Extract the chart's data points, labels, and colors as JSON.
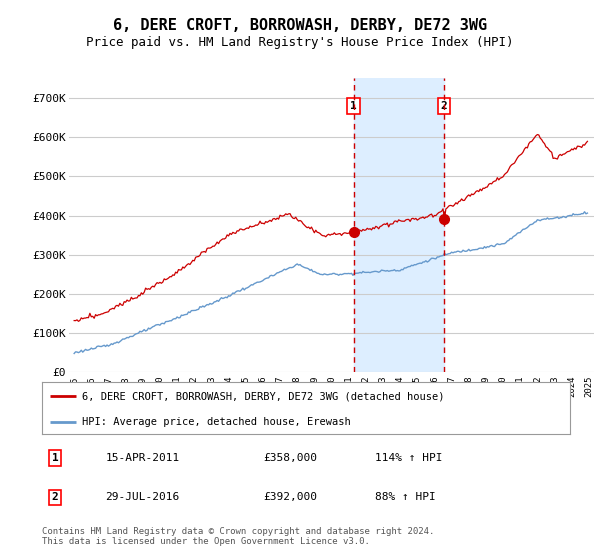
{
  "title": "6, DERE CROFT, BORROWASH, DERBY, DE72 3WG",
  "subtitle": "Price paid vs. HM Land Registry's House Price Index (HPI)",
  "title_fontsize": 11,
  "subtitle_fontsize": 9,
  "ylim": [
    0,
    750000
  ],
  "yticks": [
    0,
    100000,
    200000,
    300000,
    400000,
    500000,
    600000,
    700000
  ],
  "ytick_labels": [
    "£0",
    "£100K",
    "£200K",
    "£300K",
    "£400K",
    "£500K",
    "£600K",
    "£700K"
  ],
  "sale1_date_x": 2011.29,
  "sale1_price": 358000,
  "sale1_label": "1",
  "sale2_date_x": 2016.57,
  "sale2_price": 392000,
  "sale2_label": "2",
  "highlight_start": 2011.29,
  "highlight_end": 2016.57,
  "legend_line1": "6, DERE CROFT, BORROWASH, DERBY, DE72 3WG (detached house)",
  "legend_line2": "HPI: Average price, detached house, Erewash",
  "table_row1_num": "1",
  "table_row1_date": "15-APR-2011",
  "table_row1_price": "£358,000",
  "table_row1_hpi": "114% ↑ HPI",
  "table_row2_num": "2",
  "table_row2_date": "29-JUL-2016",
  "table_row2_price": "£392,000",
  "table_row2_hpi": "88% ↑ HPI",
  "footer": "Contains HM Land Registry data © Crown copyright and database right 2024.\nThis data is licensed under the Open Government Licence v3.0.",
  "red_line_color": "#cc0000",
  "blue_line_color": "#6699cc",
  "highlight_color": "#ddeeff",
  "vline_color": "#cc0000",
  "grid_color": "#cccccc",
  "background_color": "#ffffff",
  "xlim_left": 1994.7,
  "xlim_right": 2025.3
}
